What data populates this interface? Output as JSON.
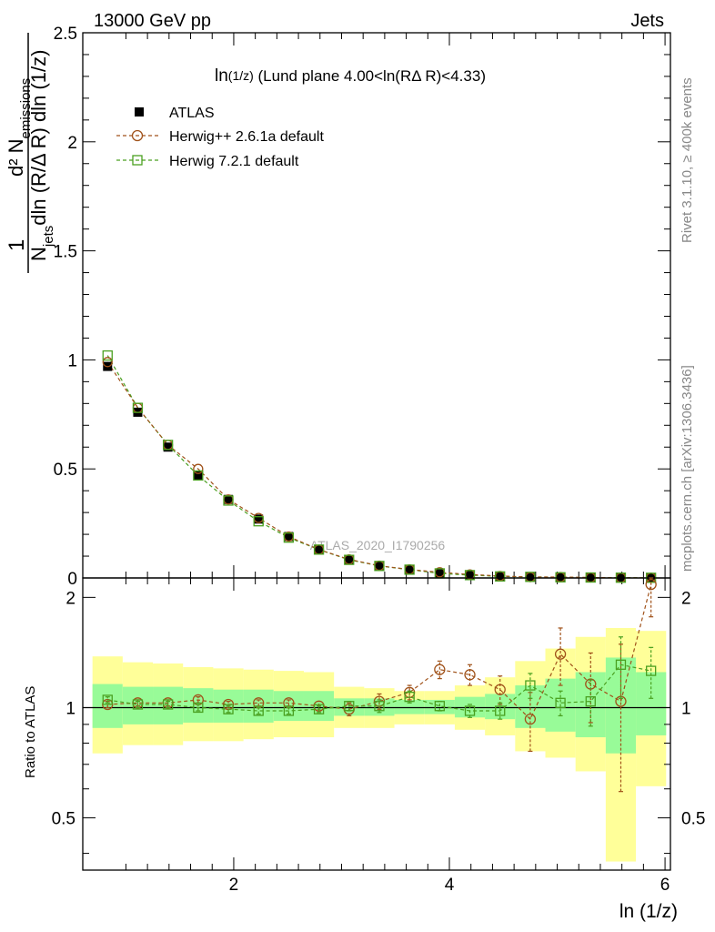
{
  "header": {
    "left": "13000 GeV pp",
    "right": "Jets"
  },
  "main_title": {
    "base": "ln",
    "sub": "(1/z)",
    "rest": " (Lund plane 4.00<ln(RΔ R)<4.33)"
  },
  "watermark": "ATLAS_2020_I1790256",
  "side_labels": {
    "rivet": "Rivet 3.1.10, ≥ 400k events",
    "mcplots": "mcplots.cern.ch [arXiv:1306.3436]"
  },
  "y_label_top": {
    "numerator": "d² N",
    "numerator_sub": "emissions",
    "denominator": "dln (R/Δ R) dln (1/z)",
    "denominator_prefix": "N",
    "denominator_sub": "jets",
    "one": "1"
  },
  "y_label_ratio": "Ratio to ATLAS",
  "x_label": "ln (1/z)",
  "legend": [
    {
      "label": "ATLAS",
      "marker": "filled-square",
      "color": "#000000"
    },
    {
      "label": "Herwig++ 2.6.1a default",
      "marker": "open-circle",
      "color": "#a0521a"
    },
    {
      "label": "Herwig 7.2.1 default",
      "marker": "open-square",
      "color": "#4aa020"
    }
  ],
  "chart_data": [
    {
      "type": "scatter",
      "panel": "main",
      "x": [
        0.83,
        1.11,
        1.39,
        1.67,
        1.95,
        2.23,
        2.51,
        2.79,
        3.07,
        3.35,
        3.63,
        3.91,
        4.19,
        4.47,
        4.75,
        5.03,
        5.31,
        5.59,
        5.87
      ],
      "xlim": [
        0.6,
        6.05
      ],
      "ylim": [
        0,
        2.5
      ],
      "x_ticks": [
        2,
        4,
        6
      ],
      "y_ticks": [
        0,
        0.5,
        1,
        1.5,
        2,
        2.5
      ],
      "y_tick_labels": [
        "0",
        "0.5",
        "1",
        "1.5",
        "2",
        "2.5"
      ],
      "series": [
        {
          "name": "ATLAS",
          "color": "#000000",
          "values": [
            0.97,
            0.76,
            0.6,
            0.47,
            0.36,
            0.27,
            0.19,
            0.13,
            0.085,
            0.055,
            0.036,
            0.021,
            0.013,
            0.007,
            0.004,
            0.0025,
            0.0015,
            0.001,
            0.0005
          ]
        },
        {
          "name": "Herwig++ 2.6.1a default",
          "color": "#a0521a",
          "values": [
            0.99,
            0.78,
            0.61,
            0.5,
            0.36,
            0.275,
            0.19,
            0.13,
            0.085,
            0.056,
            0.039,
            0.026,
            0.016,
            0.009,
            0.004,
            0.004,
            0.002,
            0.001,
            0.001
          ]
        },
        {
          "name": "Herwig 7.2.1 default",
          "color": "#4aa020",
          "values": [
            1.02,
            0.78,
            0.61,
            0.47,
            0.355,
            0.26,
            0.185,
            0.13,
            0.083,
            0.055,
            0.038,
            0.021,
            0.013,
            0.007,
            0.005,
            0.003,
            0.002,
            0.0012,
            0.0007
          ]
        }
      ]
    },
    {
      "type": "scatter",
      "panel": "ratio",
      "x": [
        0.83,
        1.11,
        1.39,
        1.67,
        1.95,
        2.23,
        2.51,
        2.79,
        3.07,
        3.35,
        3.63,
        3.91,
        4.19,
        4.47,
        4.75,
        5.03,
        5.31,
        5.59,
        5.87
      ],
      "bin_edges": [
        0.69,
        0.97,
        1.25,
        1.53,
        1.81,
        2.09,
        2.37,
        2.65,
        2.93,
        3.21,
        3.49,
        3.77,
        4.05,
        4.33,
        4.61,
        4.89,
        5.17,
        5.45,
        5.73,
        6.01
      ],
      "ylim": [
        0.36,
        2.26
      ],
      "y_ticks": [
        0.5,
        1,
        2
      ],
      "y_tick_labels": [
        "0.5",
        "1",
        "2"
      ],
      "band_yellow": {
        "low": [
          0.75,
          0.79,
          0.79,
          0.81,
          0.81,
          0.82,
          0.83,
          0.83,
          0.88,
          0.88,
          0.9,
          0.9,
          0.87,
          0.84,
          0.76,
          0.73,
          0.67,
          0.38,
          0.61
        ],
        "high": [
          1.38,
          1.33,
          1.32,
          1.29,
          1.28,
          1.27,
          1.26,
          1.25,
          1.14,
          1.13,
          1.11,
          1.11,
          1.15,
          1.21,
          1.34,
          1.45,
          1.56,
          1.65,
          1.62
        ]
      },
      "band_green": {
        "low": [
          0.88,
          0.9,
          0.9,
          0.91,
          0.91,
          0.91,
          0.92,
          0.92,
          0.95,
          0.95,
          0.96,
          0.96,
          0.94,
          0.93,
          0.88,
          0.86,
          0.83,
          0.75,
          0.84
        ]
      },
      "band_green_high": [
        1.16,
        1.14,
        1.14,
        1.13,
        1.12,
        1.12,
        1.11,
        1.11,
        1.06,
        1.06,
        1.05,
        1.05,
        1.07,
        1.09,
        1.15,
        1.2,
        1.25,
        1.37,
        1.25
      ],
      "series": [
        {
          "name": "Herwig++ 2.6.1a default",
          "color": "#a0521a",
          "values": [
            1.02,
            1.03,
            1.03,
            1.05,
            1.02,
            1.03,
            1.03,
            1.01,
            0.99,
            1.04,
            1.1,
            1.27,
            1.23,
            1.12,
            0.93,
            1.4,
            1.16,
            1.04,
            2.17
          ],
          "err": [
            0.02,
            0.02,
            0.02,
            0.02,
            0.02,
            0.02,
            0.02,
            0.03,
            0.04,
            0.05,
            0.05,
            0.07,
            0.08,
            0.1,
            0.17,
            0.25,
            0.25,
            0.45,
            0.4
          ]
        },
        {
          "name": "Herwig 7.2.1 default",
          "color": "#4aa020",
          "values": [
            1.05,
            1.02,
            1.02,
            1.0,
            0.99,
            0.98,
            0.98,
            0.99,
            1.01,
            1.01,
            1.07,
            1.01,
            0.98,
            0.98,
            1.15,
            1.03,
            1.04,
            1.31,
            1.26
          ],
          "err": [
            0.02,
            0.02,
            0.02,
            0.02,
            0.02,
            0.02,
            0.02,
            0.02,
            0.03,
            0.04,
            0.04,
            0.03,
            0.04,
            0.05,
            0.09,
            0.08,
            0.15,
            0.25,
            0.2
          ]
        }
      ]
    }
  ]
}
